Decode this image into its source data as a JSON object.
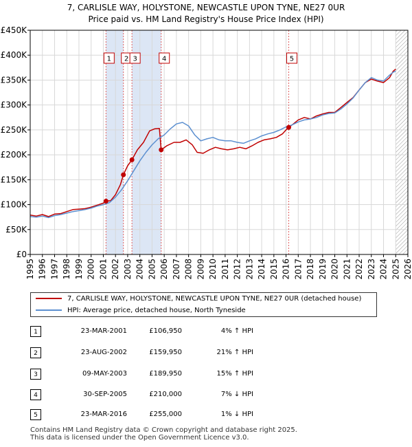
{
  "title_line1": "7, CARLISLE WAY, HOLYSTONE, NEWCASTLE UPON TYNE, NE27 0UR",
  "title_line2": "Price paid vs. HM Land Registry's House Price Index (HPI)",
  "colors": {
    "property": "#c00000",
    "hpi": "#5b8fd0",
    "shade": "#dce6f5",
    "grid": "#d8d8d8",
    "marker_line": "#e06060"
  },
  "chart_data": {
    "type": "line",
    "xlim": [
      1995,
      2026
    ],
    "ylim": [
      0,
      450000
    ],
    "y_ticks": [
      {
        "value": 0,
        "label": "£0"
      },
      {
        "value": 50000,
        "label": "£50K"
      },
      {
        "value": 100000,
        "label": "£100K"
      },
      {
        "value": 150000,
        "label": "£150K"
      },
      {
        "value": 200000,
        "label": "£200K"
      },
      {
        "value": 250000,
        "label": "£250K"
      },
      {
        "value": 300000,
        "label": "£300K"
      },
      {
        "value": 350000,
        "label": "£350K"
      },
      {
        "value": 400000,
        "label": "£400K"
      },
      {
        "value": 450000,
        "label": "£450K"
      }
    ],
    "x_ticks": [
      "1995",
      "1996",
      "1997",
      "1998",
      "1999",
      "2000",
      "2001",
      "2002",
      "2003",
      "2004",
      "2005",
      "2006",
      "2007",
      "2008",
      "2009",
      "2010",
      "2011",
      "2012",
      "2013",
      "2014",
      "2015",
      "2016",
      "2017",
      "2018",
      "2019",
      "2020",
      "2021",
      "2022",
      "2023",
      "2024",
      "2025",
      "2026"
    ],
    "shaded_periods": [
      {
        "from": 2001.22,
        "to": 2002.65
      },
      {
        "from": 2003.35,
        "to": 2005.75
      },
      {
        "from": 2025.0,
        "to": 2026.0,
        "hatched": true
      }
    ],
    "series": [
      {
        "name": "property",
        "x": [
          1995.0,
          1995.5,
          1996.0,
          1996.5,
          1997.0,
          1997.5,
          1998.0,
          1998.5,
          1999.0,
          1999.5,
          2000.0,
          2000.5,
          2001.0,
          2001.22,
          2001.6,
          2002.0,
          2002.4,
          2002.65,
          2003.0,
          2003.35,
          2003.8,
          2004.3,
          2004.8,
          2005.2,
          2005.6,
          2005.75,
          2006.2,
          2006.8,
          2007.3,
          2007.8,
          2008.3,
          2008.7,
          2009.2,
          2009.7,
          2010.2,
          2010.7,
          2011.2,
          2011.7,
          2012.2,
          2012.7,
          2013.2,
          2013.7,
          2014.2,
          2014.7,
          2015.2,
          2015.7,
          2016.0,
          2016.22,
          2016.6,
          2017.0,
          2017.5,
          2018.0,
          2018.5,
          2019.0,
          2019.5,
          2020.0,
          2020.5,
          2021.0,
          2021.5,
          2022.0,
          2022.5,
          2023.0,
          2023.5,
          2024.0,
          2024.5,
          2024.8,
          2025.0
        ],
        "values": [
          79000,
          77000,
          80000,
          76000,
          81000,
          82000,
          86000,
          90000,
          91000,
          92000,
          95000,
          99000,
          103000,
          106950,
          108000,
          120000,
          140000,
          159950,
          178000,
          189950,
          210000,
          225000,
          248000,
          252000,
          253000,
          210000,
          218000,
          225000,
          225000,
          230000,
          220000,
          205000,
          203000,
          210000,
          215000,
          212000,
          210000,
          212000,
          215000,
          212000,
          218000,
          225000,
          230000,
          232000,
          235000,
          242000,
          250000,
          255000,
          262000,
          270000,
          275000,
          272000,
          278000,
          282000,
          285000,
          285000,
          295000,
          305000,
          315000,
          330000,
          345000,
          352000,
          348000,
          345000,
          355000,
          368000,
          372000
        ]
      },
      {
        "name": "hpi",
        "x": [
          1995.0,
          1995.5,
          1996.0,
          1996.5,
          1997.0,
          1997.5,
          1998.0,
          1998.5,
          1999.0,
          1999.5,
          2000.0,
          2000.5,
          2001.0,
          2001.5,
          2002.0,
          2002.5,
          2003.0,
          2003.5,
          2004.0,
          2004.5,
          2005.0,
          2005.5,
          2006.0,
          2006.5,
          2007.0,
          2007.5,
          2008.0,
          2008.5,
          2009.0,
          2009.5,
          2010.0,
          2010.5,
          2011.0,
          2011.5,
          2012.0,
          2012.5,
          2013.0,
          2013.5,
          2014.0,
          2014.5,
          2015.0,
          2015.5,
          2016.0,
          2016.5,
          2017.0,
          2017.5,
          2018.0,
          2018.5,
          2019.0,
          2019.5,
          2020.0,
          2020.5,
          2021.0,
          2021.5,
          2022.0,
          2022.5,
          2023.0,
          2023.5,
          2024.0,
          2024.5,
          2024.8,
          2025.0
        ],
        "values": [
          76000,
          75000,
          77000,
          74000,
          78000,
          80000,
          83000,
          86000,
          88000,
          90000,
          93000,
          97000,
          100000,
          104000,
          115000,
          130000,
          148000,
          168000,
          188000,
          205000,
          220000,
          232000,
          240000,
          252000,
          262000,
          265000,
          258000,
          240000,
          228000,
          232000,
          235000,
          230000,
          228000,
          228000,
          225000,
          223000,
          228000,
          232000,
          238000,
          242000,
          245000,
          250000,
          256000,
          260000,
          266000,
          270000,
          272000,
          275000,
          280000,
          283000,
          284000,
          292000,
          302000,
          314000,
          330000,
          345000,
          355000,
          350000,
          348000,
          360000,
          366000,
          368000
        ]
      }
    ],
    "sales": [
      {
        "n": "1",
        "x": 2001.22,
        "value": 106950
      },
      {
        "n": "2",
        "x": 2002.65,
        "value": 159950
      },
      {
        "n": "3",
        "x": 2003.35,
        "value": 189950
      },
      {
        "n": "4",
        "x": 2005.75,
        "value": 210000
      },
      {
        "n": "5",
        "x": 2016.22,
        "value": 255000
      }
    ]
  },
  "legend": {
    "property_label": "7, CARLISLE WAY, HOLYSTONE, NEWCASTLE UPON TYNE, NE27 0UR (detached house)",
    "hpi_label": "HPI: Average price, detached house, North Tyneside"
  },
  "sales_table": [
    {
      "num": "1",
      "date": "23-MAR-2001",
      "price": "£106,950",
      "hpi": "4% ↑ HPI"
    },
    {
      "num": "2",
      "date": "23-AUG-2002",
      "price": "£159,950",
      "hpi": "21% ↑ HPI"
    },
    {
      "num": "3",
      "date": "09-MAY-2003",
      "price": "£189,950",
      "hpi": "15% ↑ HPI"
    },
    {
      "num": "4",
      "date": "30-SEP-2005",
      "price": "£210,000",
      "hpi": "7% ↓ HPI"
    },
    {
      "num": "5",
      "date": "23-MAR-2016",
      "price": "£255,000",
      "hpi": "1% ↓ HPI"
    }
  ],
  "footer": {
    "line1": "Contains HM Land Registry data © Crown copyright and database right 2025.",
    "line2": "This data is licensed under the Open Government Licence v3.0."
  }
}
